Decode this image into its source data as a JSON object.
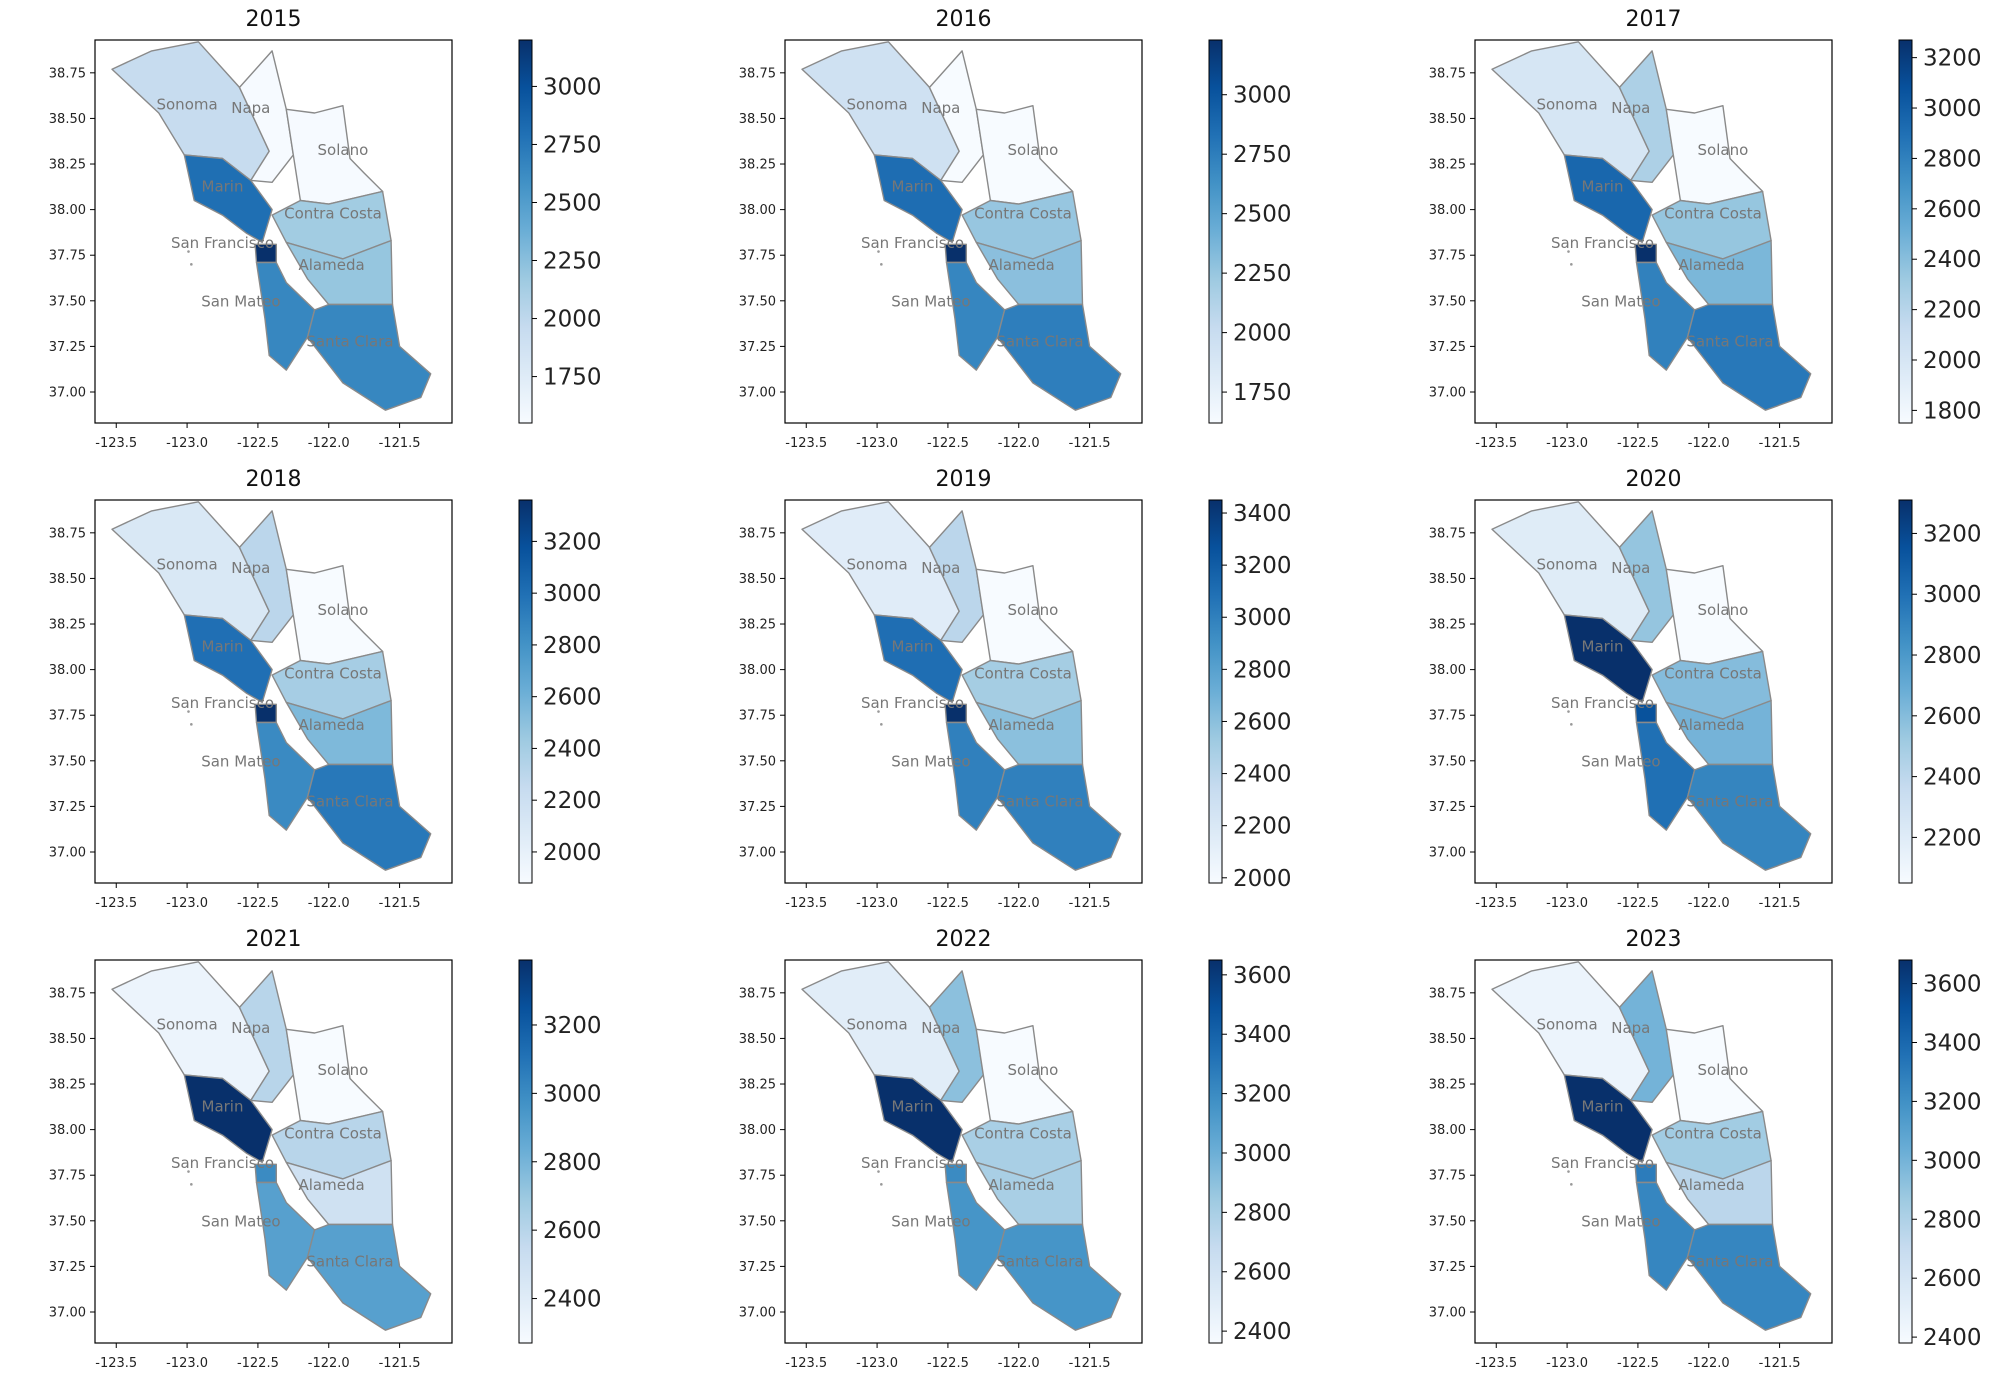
{
  "colors": {
    "low": "#f7fbff",
    "mid": "#6aaed6",
    "high": "#08306b",
    "border": "#8a8a8a",
    "label": "#777777"
  },
  "map_data": {
    "type": "choropleth",
    "x_ticks": [
      "-123.5",
      "-123.0",
      "-122.5",
      "-122.0",
      "-121.5"
    ],
    "y_ticks": [
      "38.75",
      "38.50",
      "38.25",
      "38.00",
      "37.75",
      "37.50",
      "37.25",
      "37.00"
    ],
    "counties": [
      "Sonoma",
      "Napa",
      "Solano",
      "Marin",
      "Contra Costa",
      "San Francisco",
      "Alameda",
      "San Mateo",
      "Santa Clara"
    ],
    "county_labels": [
      "Sonoma",
      "Napa",
      "Solano",
      "Marin",
      "Contra Costa",
      "San Francisco",
      "Alameda",
      "San Mateo",
      "Santa Clara"
    ],
    "panels": [
      {
        "title": "2015",
        "vmin": 1550,
        "vmax": 3200,
        "cb_ticks": [
          "1750",
          "2000",
          "2250",
          "2500",
          "2750",
          "3000"
        ],
        "values": {
          "Sonoma": 1950,
          "Napa": 1560,
          "Solano": 1560,
          "Marin": 2800,
          "Contra Costa": 2150,
          "San Francisco": 3200,
          "Alameda": 2200,
          "San Mateo": 2650,
          "Santa Clara": 2650
        }
      },
      {
        "title": "2016",
        "vmin": 1620,
        "vmax": 3230,
        "cb_ticks": [
          "1750",
          "2000",
          "2250",
          "2500",
          "2750",
          "3000"
        ],
        "values": {
          "Sonoma": 1950,
          "Napa": 1620,
          "Solano": 1620,
          "Marin": 2850,
          "Contra Costa": 2250,
          "San Francisco": 3230,
          "Alameda": 2300,
          "San Mateo": 2700,
          "Santa Clara": 2750
        }
      },
      {
        "title": "2017",
        "vmin": 1750,
        "vmax": 3270,
        "cb_ticks": [
          "1800",
          "2000",
          "2200",
          "2400",
          "2600",
          "2800",
          "3000",
          "3200"
        ],
        "values": {
          "Sonoma": 2000,
          "Napa": 2250,
          "Solano": 1750,
          "Marin": 2950,
          "Contra Costa": 2350,
          "San Francisco": 3270,
          "Alameda": 2450,
          "San Mateo": 2800,
          "Santa Clara": 2850
        }
      },
      {
        "title": "2018",
        "vmin": 1880,
        "vmax": 3360,
        "cb_ticks": [
          "2000",
          "2200",
          "2400",
          "2600",
          "2800",
          "3000",
          "3200"
        ],
        "values": {
          "Sonoma": 2100,
          "Napa": 2300,
          "Solano": 1880,
          "Marin": 3000,
          "Contra Costa": 2400,
          "San Francisco": 3360,
          "Alameda": 2550,
          "San Mateo": 2850,
          "Santa Clara": 2950
        }
      },
      {
        "title": "2019",
        "vmin": 1980,
        "vmax": 3450,
        "cb_ticks": [
          "2000",
          "2200",
          "2400",
          "2600",
          "2800",
          "3000",
          "3200",
          "3400"
        ],
        "values": {
          "Sonoma": 2150,
          "Napa": 2400,
          "Solano": 1980,
          "Marin": 3100,
          "Contra Costa": 2500,
          "San Francisco": 3450,
          "Alameda": 2600,
          "San Mateo": 3000,
          "Santa Clara": 3000
        }
      },
      {
        "title": "2020",
        "vmin": 2050,
        "vmax": 3310,
        "cb_ticks": [
          "2200",
          "2400",
          "2600",
          "2800",
          "3000",
          "3200"
        ],
        "values": {
          "Sonoma": 2200,
          "Napa": 2550,
          "Solano": 2050,
          "Marin": 3310,
          "Contra Costa": 2600,
          "San Francisco": 3150,
          "Alameda": 2650,
          "San Mateo": 3000,
          "Santa Clara": 2900
        }
      },
      {
        "title": "2021",
        "vmin": 2270,
        "vmax": 3390,
        "cb_ticks": [
          "2400",
          "2600",
          "2800",
          "3000",
          "3200"
        ],
        "values": {
          "Sonoma": 2330,
          "Napa": 2600,
          "Solano": 2270,
          "Marin": 3390,
          "Contra Costa": 2600,
          "San Francisco": 3000,
          "Alameda": 2500,
          "San Mateo": 2900,
          "Santa Clara": 2900
        }
      },
      {
        "title": "2022",
        "vmin": 2360,
        "vmax": 3650,
        "cb_ticks": [
          "2400",
          "2600",
          "2800",
          "3000",
          "3200",
          "3400",
          "3600"
        ],
        "values": {
          "Sonoma": 2500,
          "Napa": 2900,
          "Solano": 2360,
          "Marin": 3650,
          "Contra Costa": 2800,
          "San Francisco": 3200,
          "Alameda": 2800,
          "San Mateo": 3150,
          "Santa Clara": 3150
        }
      },
      {
        "title": "2023",
        "vmin": 2380,
        "vmax": 3680,
        "cb_ticks": [
          "2400",
          "2600",
          "2800",
          "3000",
          "3200",
          "3400",
          "3600"
        ],
        "values": {
          "Sonoma": 2450,
          "Napa": 3000,
          "Solano": 2380,
          "Marin": 3680,
          "Contra Costa": 2850,
          "San Francisco": 3300,
          "Alameda": 2750,
          "San Mateo": 3250,
          "Santa Clara": 3250
        }
      }
    ]
  }
}
